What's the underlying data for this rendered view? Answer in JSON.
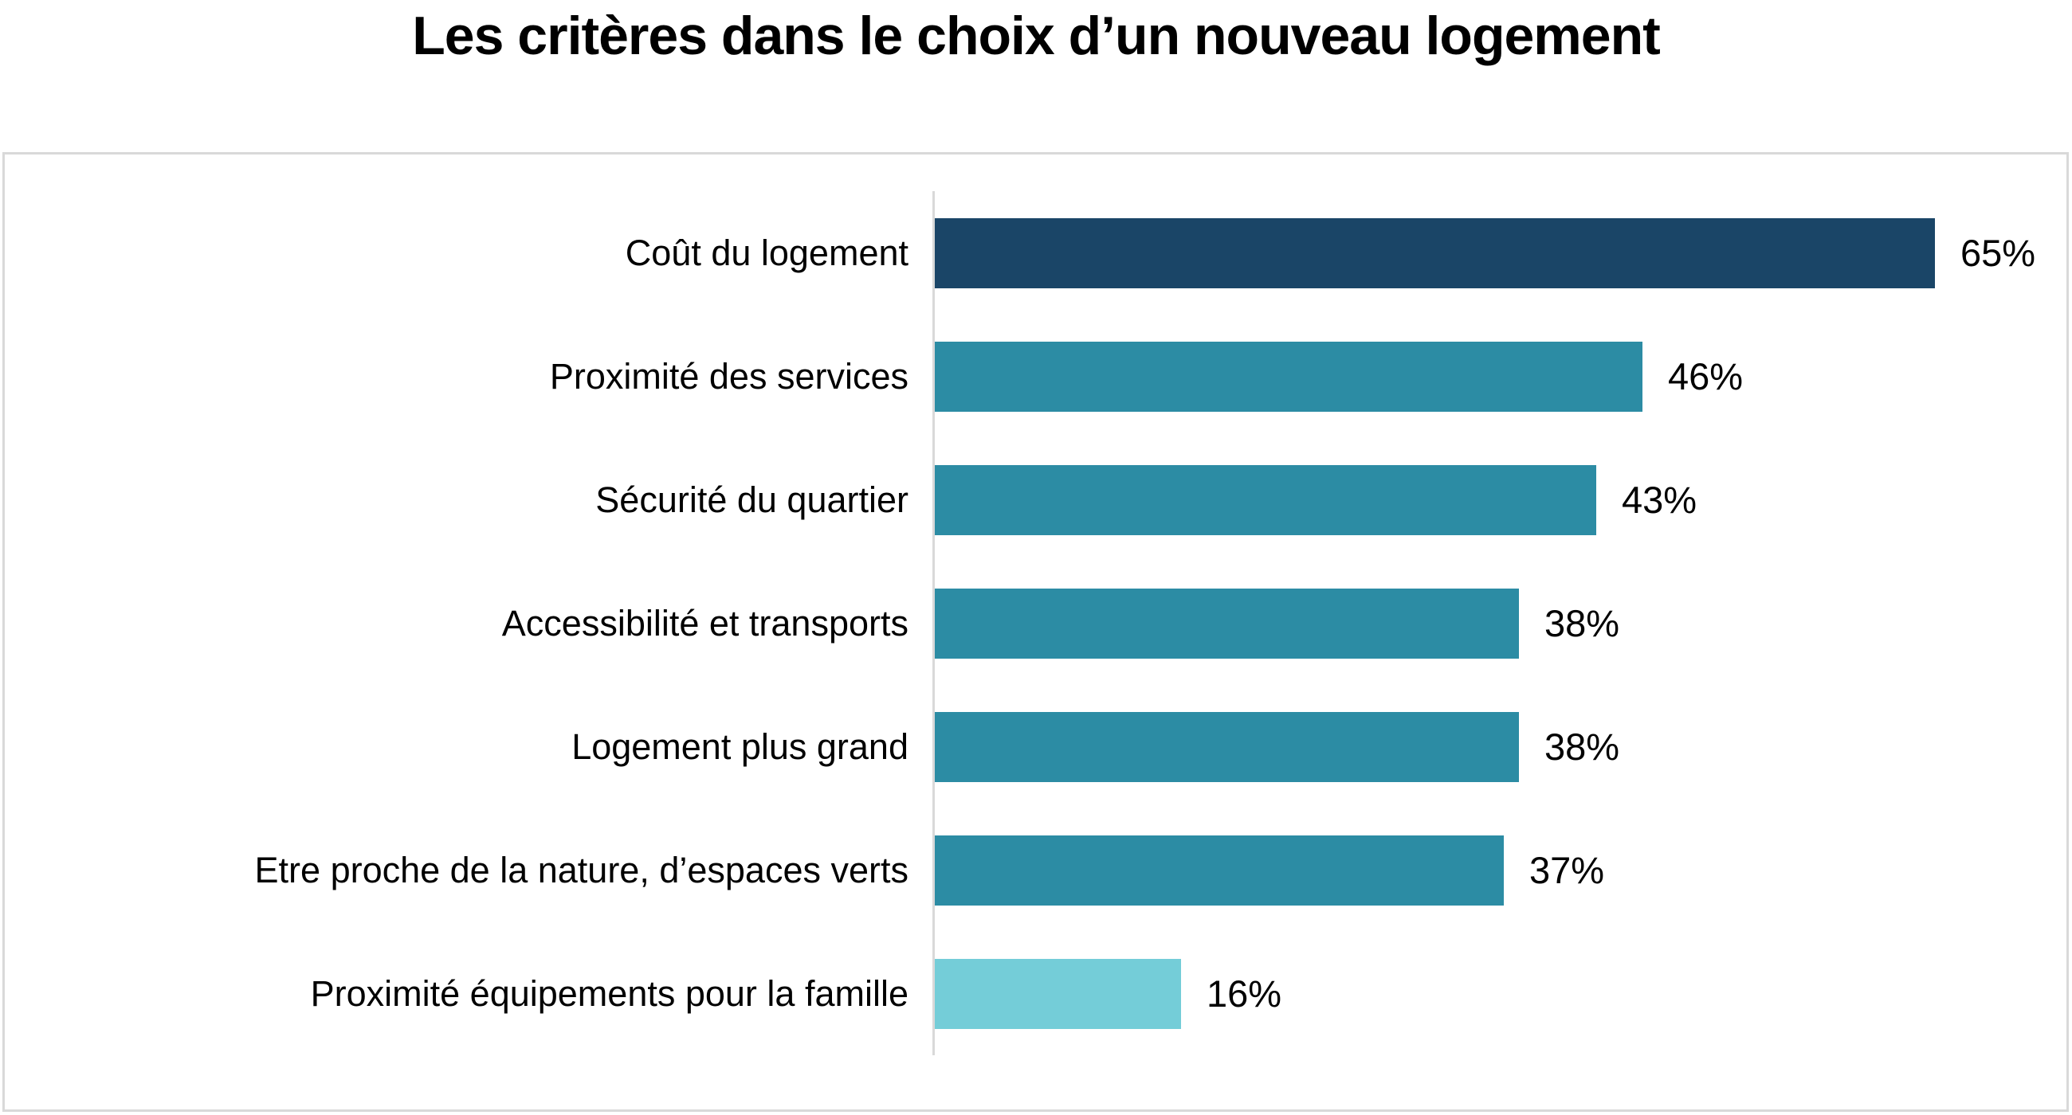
{
  "title": "Les critères dans le choix d’un nouveau logement",
  "chart_data": {
    "type": "bar",
    "orientation": "horizontal",
    "title": "Les critères dans le choix d’un nouveau logement",
    "categories": [
      "Coût du logement",
      "Proximité des services",
      "Sécurité du quartier",
      "Accessibilité et transports",
      "Logement plus grand",
      "Etre proche de la nature, d’espaces verts",
      "Proximité équipements pour la famille"
    ],
    "values": [
      65,
      46,
      43,
      38,
      38,
      37,
      16
    ],
    "value_labels": [
      "65%",
      "46%",
      "43%",
      "38%",
      "38%",
      "37%",
      "16%"
    ],
    "bar_colors": [
      "#1A4567",
      "#2C8CA4",
      "#2C8CA4",
      "#2C8CA4",
      "#2C8CA4",
      "#2C8CA4",
      "#74CDD8"
    ],
    "xlim": [
      0,
      70
    ],
    "grid": false,
    "legend": false,
    "axis_color": "#D9D9D9",
    "border_color": "#D9D9D9",
    "xlabel": "",
    "ylabel": ""
  }
}
